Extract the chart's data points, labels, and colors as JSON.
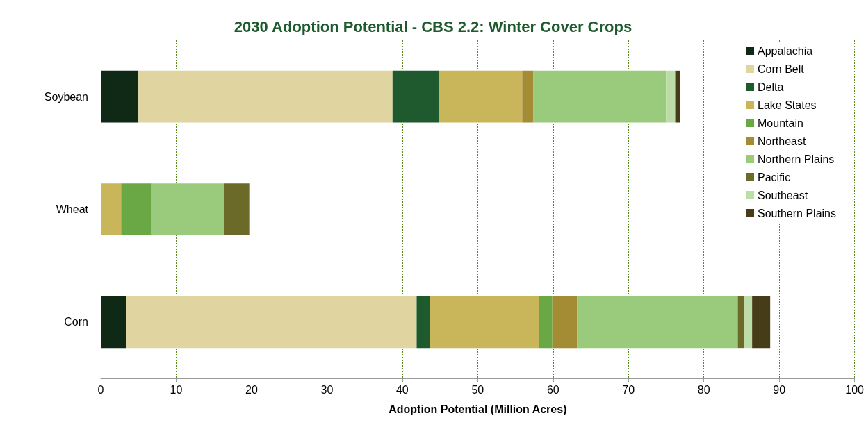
{
  "chart_data": {
    "type": "bar",
    "title": "2030 Adoption Potential - CBS 2.2: Winter Cover Crops",
    "xlabel": "Adoption Potential (Million Acres)",
    "orientation": "horizontal",
    "stacked": true,
    "categories": [
      "Soybean",
      "Wheat",
      "Corn"
    ],
    "series": [
      {
        "name": "Appalachia",
        "color": "#0f2916",
        "values": [
          5.0,
          0,
          3.4
        ]
      },
      {
        "name": "Corn Belt",
        "color": "#e0d4a0",
        "values": [
          33.7,
          0,
          38.5
        ]
      },
      {
        "name": "Delta",
        "color": "#1f5a2e",
        "values": [
          6.2,
          0,
          1.8
        ]
      },
      {
        "name": "Lake States",
        "color": "#c9b55a",
        "values": [
          11.0,
          2.7,
          14.4
        ]
      },
      {
        "name": "Mountain",
        "color": "#6aa845",
        "values": [
          0,
          4.0,
          1.8
        ]
      },
      {
        "name": "Northeast",
        "color": "#a38c33",
        "values": [
          1.5,
          0,
          3.3
        ]
      },
      {
        "name": "Northern Plains",
        "color": "#9acb7d",
        "values": [
          17.6,
          9.7,
          21.3
        ]
      },
      {
        "name": "Pacific",
        "color": "#6b6a28",
        "values": [
          0,
          3.3,
          0.9
        ]
      },
      {
        "name": "Southeast",
        "color": "#bcdda8",
        "values": [
          1.2,
          0,
          1.0
        ]
      },
      {
        "name": "Southern Plains",
        "color": "#463d18",
        "values": [
          0.6,
          0,
          2.4
        ]
      }
    ],
    "xlim": [
      0,
      100
    ],
    "xticks": [
      0,
      10,
      20,
      30,
      40,
      50,
      60,
      70,
      80,
      90,
      100
    ],
    "grid": "x",
    "legend": "top right"
  }
}
